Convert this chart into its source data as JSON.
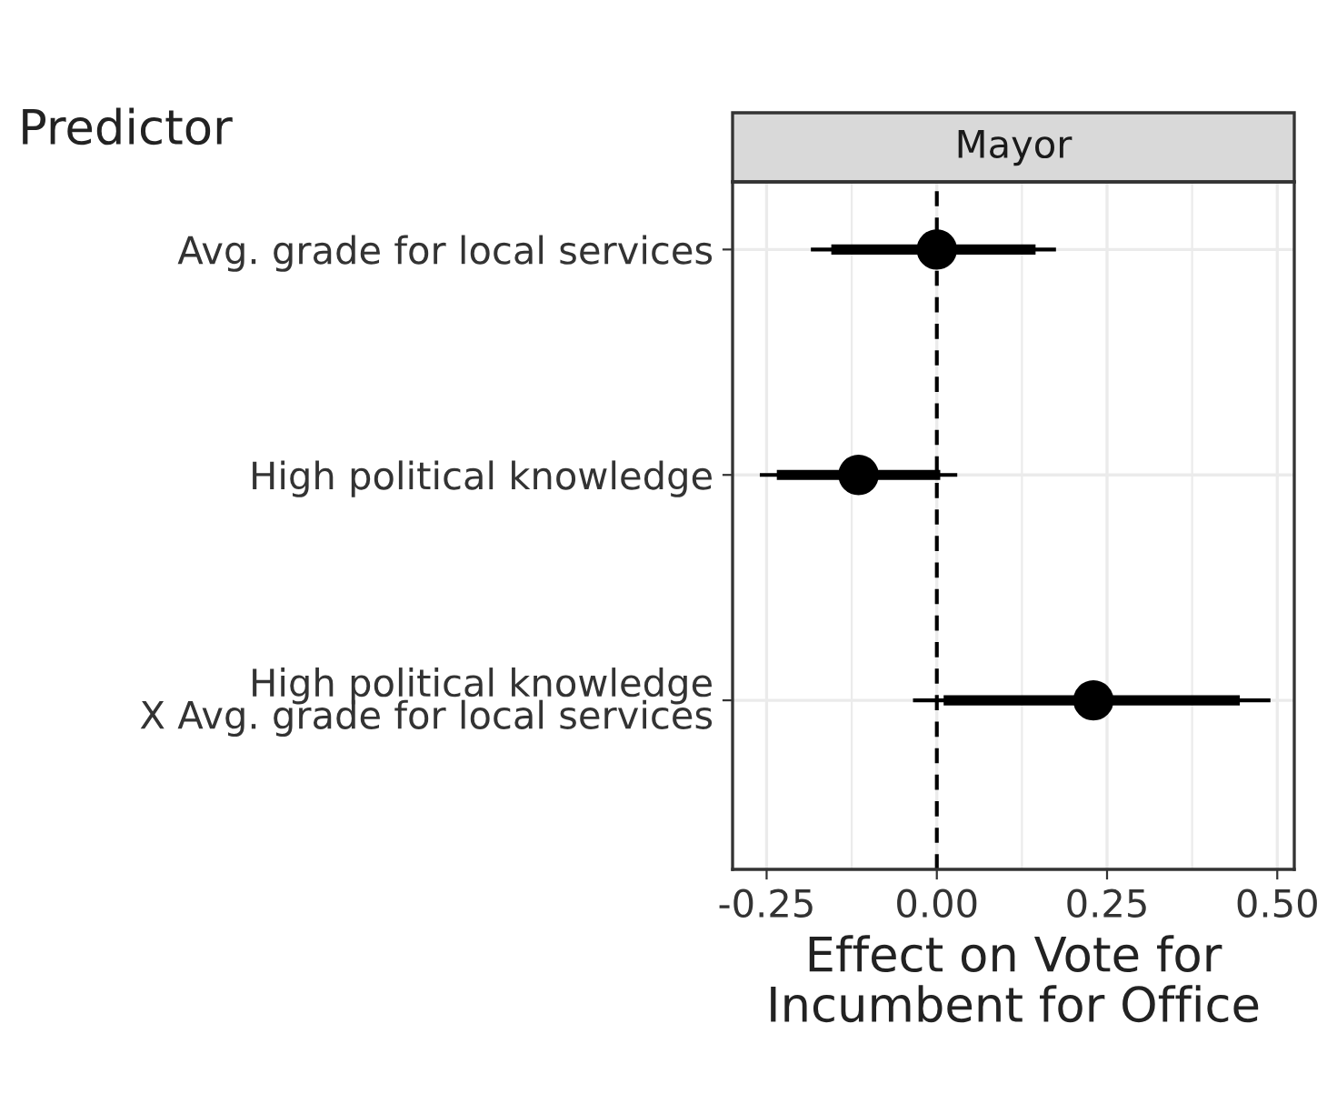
{
  "chart_data": {
    "type": "scatter",
    "orientation": "horizontal",
    "title": "Mayor",
    "ylabel": "Predictor",
    "xlabel": "Effect on Vote for\nIncumbent for Office",
    "categories": [
      "Avg. grade for local services",
      "High political knowledge",
      "High political knowledge\nX Avg. grade for local services"
    ],
    "series": [
      {
        "type": "bar",
        "color": "#000000",
        "values": [
          0.3,
          0.24,
          0.435
        ],
        "base": [
          -0.155,
          -0.235,
          0.01
        ]
      },
      {
        "color": "#000000",
        "values": [
          0.0,
          -0.115,
          0.23
        ],
        "errors": [
          [
            -0.185,
            0.175
          ],
          [
            -0.26,
            0.03
          ],
          [
            -0.035,
            0.49
          ]
        ]
      }
    ],
    "xlim": [
      -0.3,
      0.525
    ],
    "xticks": [
      -0.25,
      {
        "value": 0,
        "label": "0.00"
      },
      0.25,
      {
        "value": 0.5,
        "label": "0.50"
      }
    ],
    "ref_lines": [
      {
        "axis": "x",
        "value": 0,
        "color": "#000000",
        "line_style": "dashed"
      }
    ],
    "marker": "circle",
    "grid": true,
    "legend": false
  }
}
